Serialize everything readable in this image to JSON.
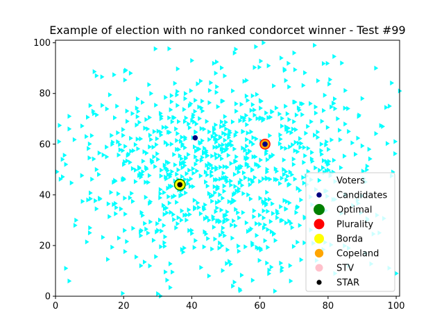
{
  "chart_data": {
    "type": "scatter",
    "title": "Example of election with no ranked condorcet winner - Test #99",
    "xlabel": "",
    "ylabel": "",
    "xlim": [
      0,
      101
    ],
    "ylim": [
      0,
      101
    ],
    "xticks": [
      "0",
      "20",
      "40",
      "60",
      "80",
      "100"
    ],
    "yticks": [
      "0",
      "20",
      "40",
      "60",
      "80",
      "100"
    ],
    "grid": false,
    "legend_position": "lower-right",
    "colors": {
      "voters": "#00ffff",
      "candidates": "#000080",
      "optimal": "#008000",
      "plurality": "#ff0000",
      "borda": "#ffff00",
      "copeland": "#ffa500",
      "stv": "#ffc0cb",
      "star": "#000000"
    },
    "voters": {
      "name": "Voters",
      "marker": "triangle-right",
      "distribution": "approximately normal, centered near (50, 50), spread roughly 0-100 on both axes",
      "sample_points": [
        [
          1,
          61
        ],
        [
          2,
          54
        ],
        [
          3,
          52
        ],
        [
          4,
          71
        ],
        [
          4,
          66
        ],
        [
          3,
          11
        ],
        [
          4,
          6
        ],
        [
          6,
          30
        ],
        [
          9,
          63
        ],
        [
          10,
          25
        ],
        [
          11,
          73
        ],
        [
          12,
          87
        ],
        [
          12,
          50
        ],
        [
          15,
          55
        ],
        [
          17,
          45
        ],
        [
          18,
          75
        ],
        [
          20,
          52
        ],
        [
          21,
          69
        ],
        [
          22,
          88
        ],
        [
          24,
          62
        ],
        [
          25,
          47
        ],
        [
          26,
          57
        ],
        [
          27,
          66
        ],
        [
          28,
          80
        ],
        [
          30,
          54
        ],
        [
          30,
          26
        ],
        [
          31,
          71
        ],
        [
          33,
          48
        ],
        [
          34,
          60
        ],
        [
          35,
          84
        ],
        [
          36,
          31
        ],
        [
          37,
          40
        ],
        [
          38,
          62
        ],
        [
          39,
          68
        ],
        [
          40,
          93
        ],
        [
          41,
          55
        ],
        [
          42,
          35
        ],
        [
          43,
          77
        ],
        [
          44,
          49
        ],
        [
          45,
          30
        ],
        [
          46,
          63
        ],
        [
          47,
          56
        ],
        [
          47,
          88
        ],
        [
          48,
          19
        ],
        [
          49,
          57
        ],
        [
          50,
          66
        ],
        [
          50,
          46
        ],
        [
          51,
          60
        ],
        [
          52,
          38
        ],
        [
          53,
          73
        ],
        [
          54,
          51
        ],
        [
          55,
          33
        ],
        [
          55,
          65
        ],
        [
          56,
          79
        ],
        [
          57,
          44
        ],
        [
          58,
          55
        ],
        [
          59,
          24
        ],
        [
          60,
          70
        ],
        [
          61,
          100
        ],
        [
          62,
          41
        ],
        [
          63,
          55
        ],
        [
          64,
          83
        ],
        [
          65,
          31
        ],
        [
          66,
          62
        ],
        [
          67,
          48
        ],
        [
          68,
          72
        ],
        [
          70,
          96
        ],
        [
          71,
          57
        ],
        [
          72,
          38
        ],
        [
          74,
          67
        ],
        [
          75,
          46
        ],
        [
          76,
          99
        ],
        [
          77,
          29
        ],
        [
          78,
          60
        ],
        [
          80,
          52
        ],
        [
          82,
          74
        ],
        [
          84,
          92
        ],
        [
          85,
          40
        ],
        [
          86,
          65
        ],
        [
          88,
          56
        ],
        [
          90,
          78
        ],
        [
          92,
          58
        ],
        [
          94,
          90
        ],
        [
          96,
          67
        ],
        [
          98,
          75
        ],
        [
          99,
          49
        ],
        [
          100,
          9
        ],
        [
          101,
          81
        ],
        [
          52,
          4
        ],
        [
          45,
          8
        ],
        [
          30,
          1
        ],
        [
          69,
          6
        ],
        [
          82,
          9
        ],
        [
          86,
          12
        ],
        [
          91,
          17
        ],
        [
          95,
          25
        ]
      ]
    },
    "series": [
      {
        "name": "Candidates",
        "x": [
          41,
          61.5,
          36.5
        ],
        "y": [
          62.5,
          60,
          44
        ]
      },
      {
        "name": "Optimal",
        "x": [
          36.5
        ],
        "y": [
          44
        ]
      },
      {
        "name": "Plurality",
        "x": [
          61.5
        ],
        "y": [
          60
        ]
      },
      {
        "name": "Borda",
        "x": [
          36.5
        ],
        "y": [
          44
        ]
      },
      {
        "name": "Copeland",
        "x": [
          61.5
        ],
        "y": [
          60
        ]
      },
      {
        "name": "STV",
        "x": [],
        "y": []
      },
      {
        "name": "STAR",
        "x": [
          36.5
        ],
        "y": [
          44
        ]
      }
    ],
    "legend": [
      "Voters",
      "Candidates",
      "Optimal",
      "Plurality",
      "Borda",
      "Copeland",
      "STV",
      "STAR"
    ]
  }
}
